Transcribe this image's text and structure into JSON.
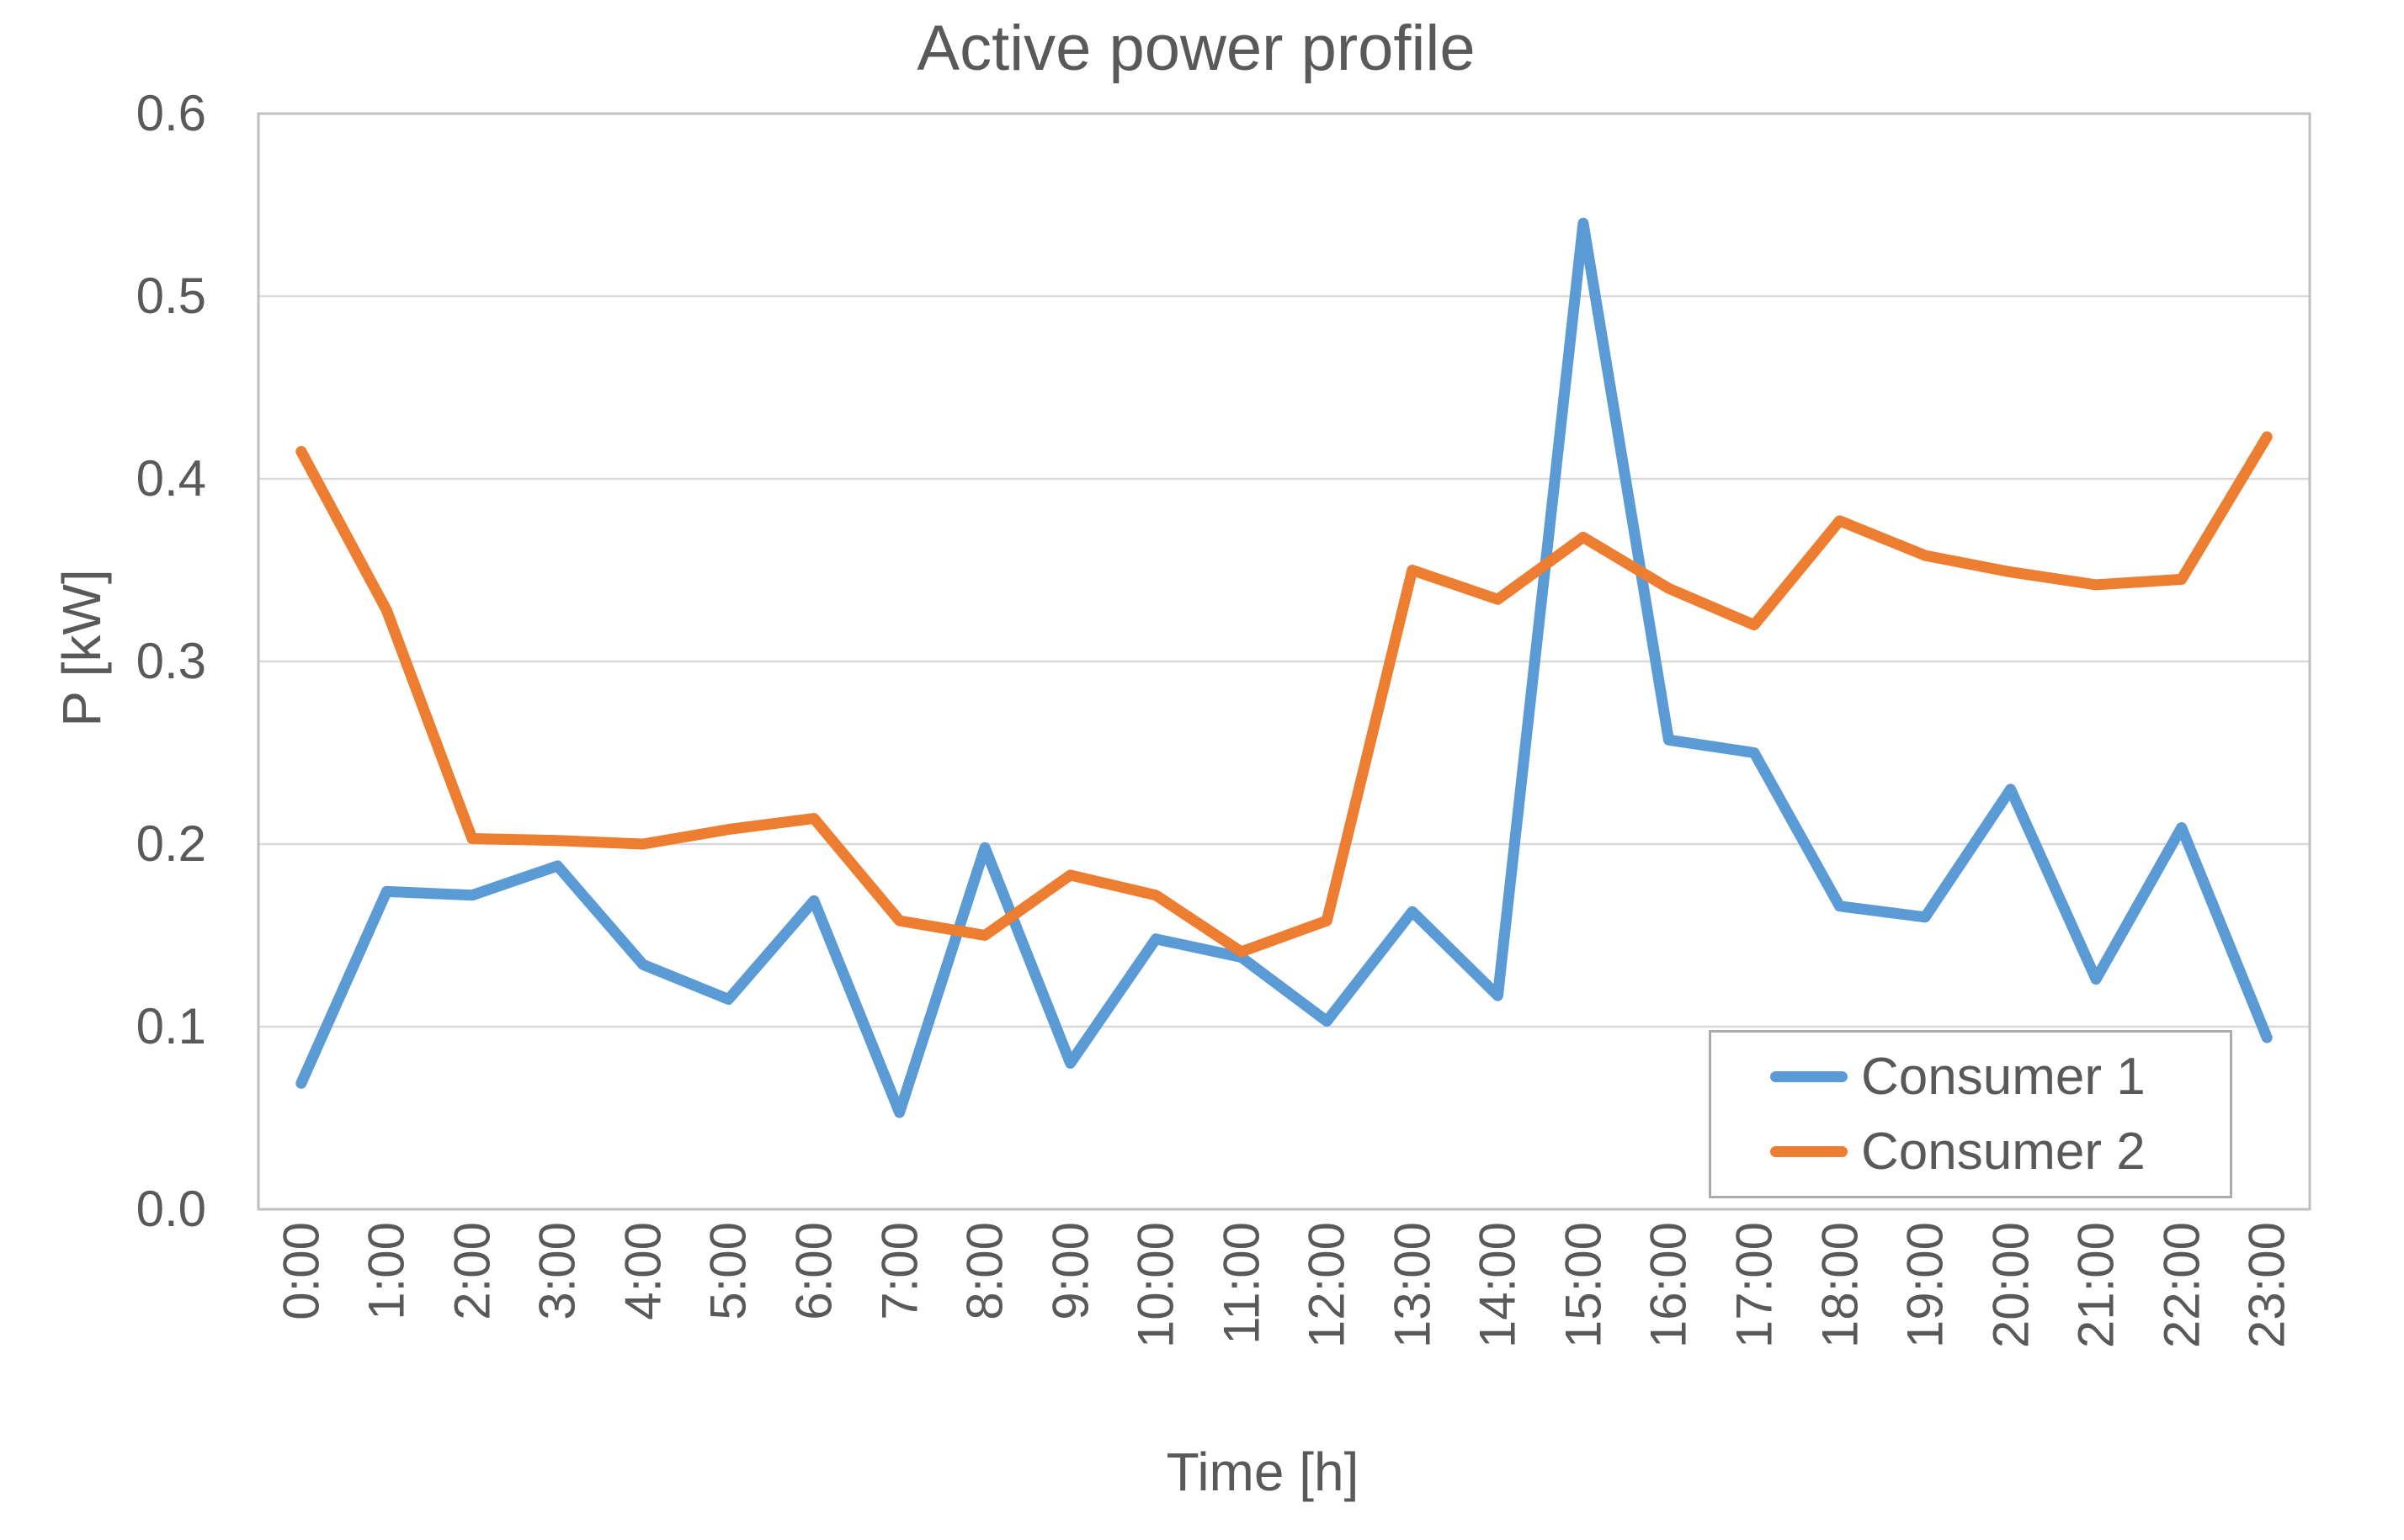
{
  "chart_data": {
    "type": "line",
    "title": "Active power profile",
    "xlabel": "Time [h]",
    "ylabel": "P [kW]",
    "categories": [
      "0:00",
      "1:00",
      "2:00",
      "3:00",
      "4:00",
      "5:00",
      "6:00",
      "7:00",
      "8:00",
      "9:00",
      "10:00",
      "11:00",
      "12:00",
      "13:00",
      "14:00",
      "15:00",
      "16:00",
      "17:00",
      "18:00",
      "19:00",
      "20:00",
      "21:00",
      "22:00",
      "23:00"
    ],
    "series": [
      {
        "name": "Consumer 1",
        "color": "#5B9BD5",
        "values": [
          0.069,
          0.174,
          0.172,
          0.188,
          0.134,
          0.115,
          0.169,
          0.053,
          0.198,
          0.08,
          0.148,
          0.138,
          0.103,
          0.163,
          0.117,
          0.54,
          0.257,
          0.25,
          0.166,
          0.16,
          0.23,
          0.126,
          0.209,
          0.094
        ]
      },
      {
        "name": "Consumer 2",
        "color": "#ED7D31",
        "values": [
          0.415,
          0.328,
          0.203,
          0.202,
          0.2,
          0.208,
          0.214,
          0.158,
          0.15,
          0.183,
          0.172,
          0.141,
          0.158,
          0.35,
          0.334,
          0.368,
          0.34,
          0.32,
          0.377,
          0.358,
          0.349,
          0.342,
          0.345,
          0.423
        ]
      }
    ],
    "ylim": [
      0,
      0.6
    ],
    "y_ticks": [
      0.0,
      0.1,
      0.2,
      0.3,
      0.4,
      0.5,
      0.6
    ],
    "y_tick_labels": [
      "0.0",
      "0.1",
      "0.2",
      "0.3",
      "0.4",
      "0.5",
      "0.6"
    ],
    "grid": "horizontal",
    "legend_position": "inside-bottom-right",
    "gridline_color": "#D9D9D9",
    "border_color": "#BFBFBF",
    "text_color": "#595959"
  }
}
